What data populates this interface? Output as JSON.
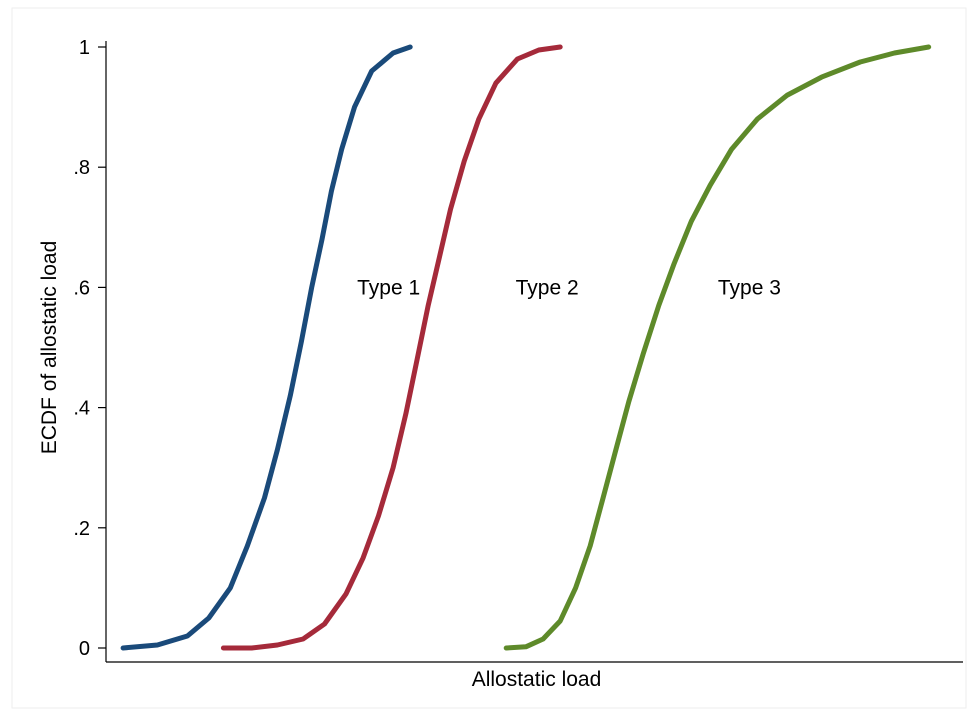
{
  "chart_data": {
    "type": "line",
    "title": "",
    "xlabel": "Allostatic load",
    "ylabel": "ECDF of allostatic load",
    "ylim": [
      0,
      1
    ],
    "xlim": [
      0,
      1
    ],
    "yticks": [
      {
        "value": 0,
        "label": "0"
      },
      {
        "value": 0.2,
        "label": ".2"
      },
      {
        "value": 0.4,
        "label": ".4"
      },
      {
        "value": 0.6,
        "label": ".6"
      },
      {
        "value": 0.8,
        "label": ".8"
      },
      {
        "value": 1,
        "label": "1"
      }
    ],
    "xticks": [],
    "grid": false,
    "legend": "none",
    "series": [
      {
        "name": "Type 1",
        "color": "#1a4a7a",
        "label_at": {
          "x": 0.293,
          "y": 0.6
        },
        "points": [
          [
            0.02,
            0.0
          ],
          [
            0.06,
            0.005
          ],
          [
            0.095,
            0.02
          ],
          [
            0.12,
            0.05
          ],
          [
            0.145,
            0.1
          ],
          [
            0.165,
            0.17
          ],
          [
            0.185,
            0.25
          ],
          [
            0.2,
            0.33
          ],
          [
            0.215,
            0.42
          ],
          [
            0.228,
            0.51
          ],
          [
            0.24,
            0.6
          ],
          [
            0.252,
            0.68
          ],
          [
            0.263,
            0.76
          ],
          [
            0.275,
            0.83
          ],
          [
            0.29,
            0.9
          ],
          [
            0.31,
            0.96
          ],
          [
            0.335,
            0.99
          ],
          [
            0.355,
            1.0
          ]
        ]
      },
      {
        "name": "Type 2",
        "color": "#a52a3a",
        "label_at": {
          "x": 0.478,
          "y": 0.6
        },
        "points": [
          [
            0.137,
            0.0
          ],
          [
            0.17,
            0.0
          ],
          [
            0.2,
            0.005
          ],
          [
            0.23,
            0.015
          ],
          [
            0.255,
            0.04
          ],
          [
            0.28,
            0.09
          ],
          [
            0.3,
            0.15
          ],
          [
            0.318,
            0.22
          ],
          [
            0.335,
            0.3
          ],
          [
            0.35,
            0.39
          ],
          [
            0.363,
            0.48
          ],
          [
            0.376,
            0.57
          ],
          [
            0.389,
            0.65
          ],
          [
            0.402,
            0.73
          ],
          [
            0.418,
            0.81
          ],
          [
            0.435,
            0.88
          ],
          [
            0.455,
            0.94
          ],
          [
            0.48,
            0.98
          ],
          [
            0.505,
            0.995
          ],
          [
            0.53,
            1.0
          ]
        ]
      },
      {
        "name": "Type 3",
        "color": "#5e8a2a",
        "label_at": {
          "x": 0.714,
          "y": 0.6
        },
        "points": [
          [
            0.467,
            0.0
          ],
          [
            0.49,
            0.002
          ],
          [
            0.51,
            0.015
          ],
          [
            0.53,
            0.045
          ],
          [
            0.548,
            0.1
          ],
          [
            0.565,
            0.17
          ],
          [
            0.58,
            0.25
          ],
          [
            0.595,
            0.33
          ],
          [
            0.61,
            0.41
          ],
          [
            0.627,
            0.49
          ],
          [
            0.645,
            0.57
          ],
          [
            0.663,
            0.64
          ],
          [
            0.683,
            0.71
          ],
          [
            0.705,
            0.77
          ],
          [
            0.73,
            0.83
          ],
          [
            0.76,
            0.88
          ],
          [
            0.795,
            0.92
          ],
          [
            0.835,
            0.95
          ],
          [
            0.88,
            0.975
          ],
          [
            0.92,
            0.99
          ],
          [
            0.96,
            1.0
          ]
        ]
      }
    ]
  }
}
